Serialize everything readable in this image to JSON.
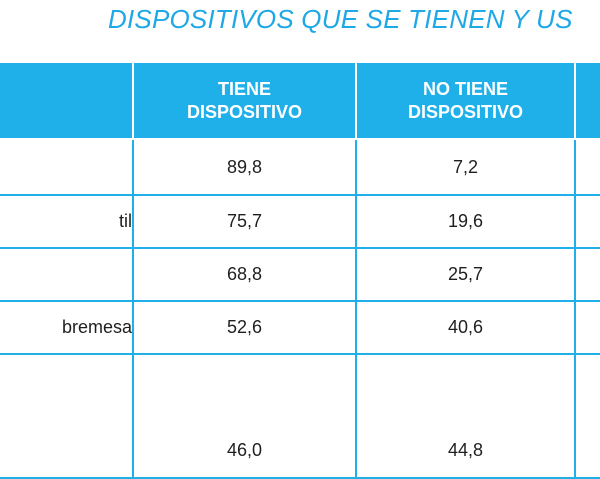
{
  "title": "DISPOSITIVOS QUE SE TIENEN Y US",
  "table": {
    "headers": [
      "",
      "TIENE DISPOSITIVO",
      "NO TIENE DISPOSITIVO",
      ""
    ],
    "rows": [
      {
        "label": "",
        "tiene": "89,8",
        "no_tiene": "7,2"
      },
      {
        "label": "til",
        "tiene": "75,7",
        "no_tiene": "19,6"
      },
      {
        "label": "",
        "tiene": "68,8",
        "no_tiene": "25,7"
      },
      {
        "label": "bremesa",
        "tiene": "52,6",
        "no_tiene": "40,6"
      },
      {
        "label": "",
        "tiene": "46,0",
        "no_tiene": "44,8"
      }
    ]
  },
  "colors": {
    "accent": "#1fb0ea",
    "title": "#1fa8e6"
  }
}
